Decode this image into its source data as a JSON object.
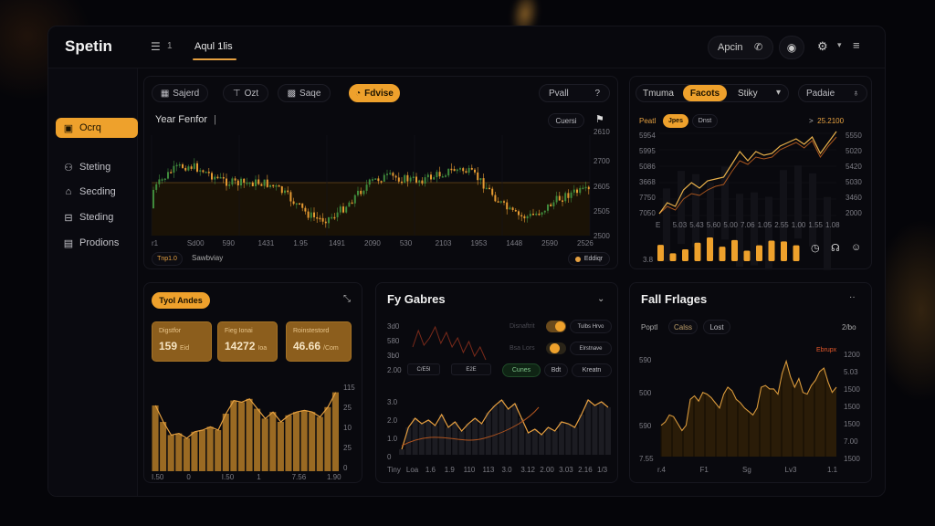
{
  "app": {
    "logo": "Spetin",
    "menu_count": "1",
    "top_tab": "Aqul 1lis",
    "search_label": "Apcin",
    "icons": {
      "menu": "list-icon",
      "search": "phone-icon",
      "user": "user-badge-icon",
      "settings": "gear-icon",
      "dropdown": "chevron-down-icon",
      "hamburger": "hamburger-icon"
    }
  },
  "sidebar": {
    "items": [
      {
        "label": "Ocrq",
        "icon": "clipboard-icon",
        "active": true
      },
      {
        "label": "Steting",
        "icon": "group-icon",
        "active": false
      },
      {
        "label": "Secding",
        "icon": "home-icon",
        "active": false
      },
      {
        "label": "Steding",
        "icon": "lock-icon",
        "active": false
      },
      {
        "label": "Prodions",
        "icon": "monitor-icon",
        "active": false
      }
    ]
  },
  "toolbar": {
    "buttons": [
      {
        "label": "Sajerd",
        "icon": "save-icon"
      },
      {
        "label": "Ozt",
        "icon": "filter-icon"
      },
      {
        "label": "Saqe",
        "icon": "floppy-icon"
      },
      {
        "label": "Fdvise",
        "icon": "bulb-icon",
        "active": true
      }
    ],
    "right_select": "Pvall",
    "right_select_icon": "help-icon"
  },
  "candle_panel": {
    "title": "Year Fenfor",
    "title_marker": "|",
    "button": "Cuersi",
    "pin_icon": "flag-icon",
    "yticks": [
      "2610",
      "2700",
      "2605",
      "2505",
      "2500"
    ],
    "xticks": [
      "r1",
      "Sd00",
      "590",
      "1431",
      "1.95",
      "1491",
      "2090",
      "530",
      "2103",
      "1953",
      "1448",
      "2590",
      "2526"
    ],
    "legend_left": "Tnp1.0",
    "legend_right": "Sawbviay",
    "badge": "Eddiqr"
  },
  "right_panel": {
    "tabs": [
      "Tmuma",
      "Facots",
      "Stiky"
    ],
    "active_tab": "Facots",
    "select": "Padaie",
    "select_icon": "bell-icon",
    "subtabs": [
      "Peatl",
      "Jpes",
      "Dnst"
    ],
    "active_subtab": "Jpes",
    "value": "25.2100",
    "arrow": ">",
    "yticks_left": [
      "5954",
      "5995",
      "5086",
      "3668",
      "7750",
      "7050"
    ],
    "yticks_right": [
      "5550",
      "5020",
      "5420",
      "5030",
      "3460",
      "2000"
    ],
    "xticks": [
      "E",
      "5.03",
      "5.43",
      "5.60",
      "5.00",
      "7.06",
      "1.05",
      "2.55",
      "1.00",
      "1.55",
      "1.08"
    ],
    "bars_label": "3.8",
    "bar_values": [
      62,
      30,
      45,
      70,
      90,
      55,
      80,
      40,
      60,
      78,
      75,
      60
    ],
    "action_icons": [
      "gauge-icon",
      "chat-icon",
      "smile-icon"
    ]
  },
  "panel_a": {
    "badge": "Tyol Andes",
    "collapse_icon": "collapse-icon",
    "kpis": [
      {
        "title": "Digstfor",
        "value": "159",
        "unit": "Eid"
      },
      {
        "title": "Fieg Ionai",
        "value": "14272",
        "unit": "Ioa"
      },
      {
        "title": "Roinstestord",
        "value": "46.66",
        "unit": "/Com"
      }
    ],
    "yticks": [
      "115",
      "25",
      "10",
      "25",
      "0"
    ],
    "xticks": [
      "I.50",
      "0",
      "I.50",
      "1",
      "7.56",
      "1.90"
    ]
  },
  "panel_b": {
    "title": "Fy Gabres",
    "yticks_small": [
      "3d0",
      "580",
      "3b0",
      "2.00"
    ],
    "small_xticks": [
      "C/E5I",
      "E2E"
    ],
    "rows": [
      {
        "label": "Disnaftrit",
        "toggle": "on",
        "button": "Tulbs Hrvo"
      },
      {
        "label": "Bsa Lors",
        "toggle": "on",
        "button": "Elrstnave"
      }
    ],
    "actions": [
      "Cunes",
      "Bdt",
      "Kreatn"
    ],
    "yticks": [
      "3.0",
      "2.0",
      "1.0",
      "0"
    ],
    "xticks": [
      "Tiny",
      "Loa",
      "1.6",
      "1.9",
      "110",
      "113",
      "3.0",
      "3.12",
      "2.00",
      "3.03",
      "2.16",
      "1/3"
    ]
  },
  "panel_c": {
    "title": "Fall Frlages",
    "more_icon": "more-icon",
    "tabs": [
      "Poptl",
      "Calss",
      "Lost"
    ],
    "right_value": "2/bo",
    "badge": "Ebrupx",
    "yticks_left": [
      "590",
      "500",
      "590",
      "7.55"
    ],
    "yticks_right": [
      "1200",
      "5.03",
      "1500",
      "1500",
      "1500",
      "7.00",
      "1500"
    ],
    "xticks": [
      "r.4",
      "F1",
      "Sg",
      "Lv3",
      "1.1"
    ]
  },
  "colors": {
    "accent": "#eea12c",
    "candle_up": "#3f8a3c",
    "candle_down": "#e59a32",
    "panel_bg": "#09090e",
    "app_bg": "#050509"
  }
}
